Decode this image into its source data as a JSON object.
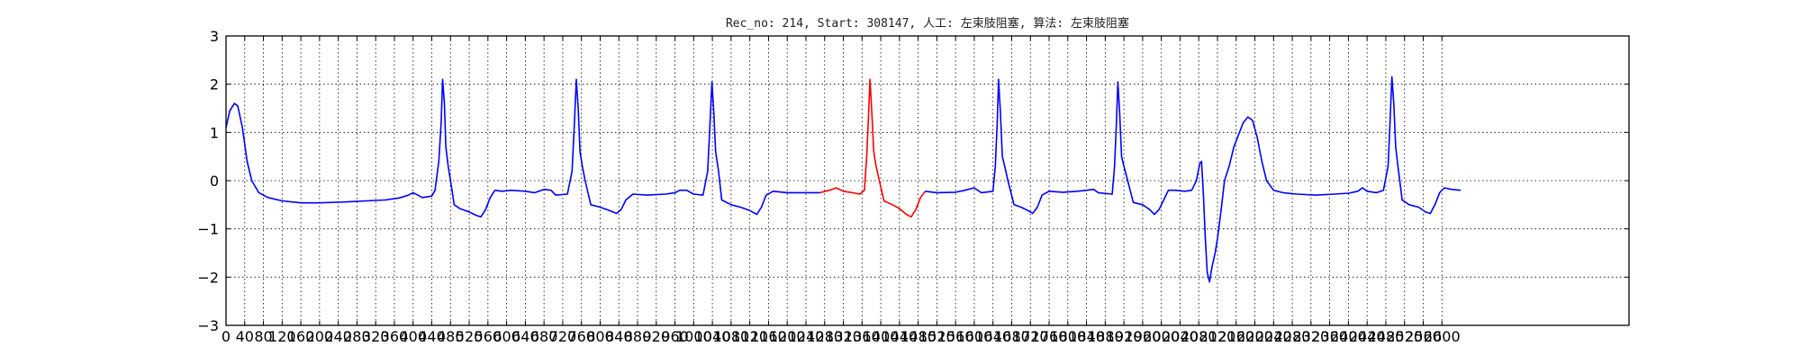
{
  "chart_data": {
    "type": "line",
    "title": "Rec_no: 214, Start: 308147, 人工: 左束肢阻塞, 算法: 左束肢阻塞",
    "xlabel": "",
    "ylabel": "",
    "xlim": [
      0,
      3000
    ],
    "ylim": [
      -3,
      3
    ],
    "grid": true,
    "x_ticks": [
      0,
      40,
      80,
      120,
      160,
      200,
      240,
      280,
      320,
      360,
      400,
      440,
      480,
      520,
      560,
      600,
      640,
      680,
      720,
      760,
      800,
      840,
      880,
      920,
      960,
      1000,
      1040,
      1080,
      1120,
      1160,
      1200,
      1240,
      1280,
      1320,
      1360,
      1400,
      1440,
      1480,
      1520,
      1560,
      1600,
      1640,
      1680,
      1720,
      1760,
      1800,
      1840,
      1880,
      1920,
      1960,
      2000,
      2040,
      2080,
      2120,
      2160,
      2200,
      2240,
      2280,
      2320,
      2360,
      2400,
      2440,
      2480,
      2520,
      2560,
      2600
    ],
    "y_ticks": [
      3,
      2,
      1,
      0,
      -1,
      -2,
      -3
    ],
    "y_tick_labels": [
      "3",
      "2",
      "1",
      "0",
      "−1",
      "−2",
      "−3"
    ],
    "series": [
      {
        "color": "#0000ff",
        "points": [
          [
            0,
            1.1
          ],
          [
            8,
            1.45
          ],
          [
            18,
            1.6
          ],
          [
            25,
            1.55
          ],
          [
            35,
            1.1
          ],
          [
            45,
            0.4
          ],
          [
            55,
            0.0
          ],
          [
            70,
            -0.25
          ],
          [
            90,
            -0.35
          ],
          [
            120,
            -0.42
          ],
          [
            160,
            -0.46
          ],
          [
            200,
            -0.46
          ],
          [
            260,
            -0.44
          ],
          [
            300,
            -0.42
          ],
          [
            340,
            -0.4
          ],
          [
            370,
            -0.36
          ],
          [
            390,
            -0.3
          ],
          [
            400,
            -0.25
          ],
          [
            410,
            -0.3
          ],
          [
            420,
            -0.35
          ],
          [
            440,
            -0.32
          ],
          [
            447,
            -0.2
          ],
          [
            455,
            0.4
          ],
          [
            460,
            1.2
          ],
          [
            463,
            2.1
          ],
          [
            467,
            1.6
          ],
          [
            470,
            0.7
          ],
          [
            475,
            0.3
          ],
          [
            480,
            0.0
          ],
          [
            488,
            -0.5
          ],
          [
            500,
            -0.58
          ],
          [
            520,
            -0.65
          ],
          [
            535,
            -0.72
          ],
          [
            545,
            -0.75
          ],
          [
            555,
            -0.6
          ],
          [
            565,
            -0.35
          ],
          [
            575,
            -0.2
          ],
          [
            590,
            -0.22
          ],
          [
            610,
            -0.2
          ],
          [
            640,
            -0.22
          ],
          [
            660,
            -0.25
          ],
          [
            680,
            -0.18
          ],
          [
            695,
            -0.2
          ],
          [
            705,
            -0.3
          ],
          [
            730,
            -0.28
          ],
          [
            740,
            0.2
          ],
          [
            745,
            1.2
          ],
          [
            749,
            2.1
          ],
          [
            753,
            1.5
          ],
          [
            757,
            0.6
          ],
          [
            762,
            0.3
          ],
          [
            768,
            0.0
          ],
          [
            780,
            -0.5
          ],
          [
            800,
            -0.55
          ],
          [
            820,
            -0.62
          ],
          [
            835,
            -0.68
          ],
          [
            845,
            -0.6
          ],
          [
            855,
            -0.4
          ],
          [
            870,
            -0.28
          ],
          [
            900,
            -0.3
          ],
          [
            940,
            -0.28
          ],
          [
            960,
            -0.25
          ],
          [
            970,
            -0.2
          ],
          [
            985,
            -0.2
          ],
          [
            1000,
            -0.28
          ],
          [
            1020,
            -0.3
          ],
          [
            1030,
            0.2
          ],
          [
            1035,
            1.2
          ],
          [
            1039,
            2.05
          ],
          [
            1043,
            1.4
          ],
          [
            1047,
            0.6
          ],
          [
            1053,
            0.2
          ],
          [
            1060,
            -0.4
          ],
          [
            1080,
            -0.5
          ],
          [
            1100,
            -0.55
          ],
          [
            1120,
            -0.62
          ],
          [
            1135,
            -0.7
          ],
          [
            1145,
            -0.55
          ],
          [
            1155,
            -0.3
          ],
          [
            1170,
            -0.22
          ],
          [
            1200,
            -0.25
          ],
          [
            1230,
            -0.25
          ],
          [
            1260,
            -0.25
          ],
          [
            1270,
            -0.25
          ]
        ]
      },
      {
        "color": "#ff0000",
        "points": [
          [
            1270,
            -0.25
          ],
          [
            1290,
            -0.2
          ],
          [
            1305,
            -0.15
          ],
          [
            1320,
            -0.22
          ],
          [
            1340,
            -0.25
          ],
          [
            1355,
            -0.28
          ],
          [
            1365,
            -0.2
          ],
          [
            1370,
            0.5
          ],
          [
            1374,
            1.4
          ],
          [
            1377,
            2.1
          ],
          [
            1381,
            1.4
          ],
          [
            1385,
            0.6
          ],
          [
            1390,
            0.3
          ],
          [
            1397,
            0.0
          ],
          [
            1407,
            -0.42
          ],
          [
            1425,
            -0.5
          ],
          [
            1440,
            -0.58
          ],
          [
            1455,
            -0.7
          ],
          [
            1465,
            -0.75
          ],
          [
            1475,
            -0.6
          ],
          [
            1485,
            -0.35
          ],
          [
            1495,
            -0.22
          ]
        ]
      },
      {
        "color": "#0000ff",
        "points": [
          [
            1495,
            -0.22
          ],
          [
            1520,
            -0.25
          ],
          [
            1560,
            -0.24
          ],
          [
            1580,
            -0.2
          ],
          [
            1600,
            -0.15
          ],
          [
            1615,
            -0.25
          ],
          [
            1640,
            -0.22
          ],
          [
            1645,
            0.3
          ],
          [
            1649,
            1.2
          ],
          [
            1652,
            2.1
          ],
          [
            1656,
            1.4
          ],
          [
            1660,
            0.5
          ],
          [
            1665,
            0.3
          ],
          [
            1672,
            0.0
          ],
          [
            1685,
            -0.5
          ],
          [
            1700,
            -0.55
          ],
          [
            1715,
            -0.62
          ],
          [
            1725,
            -0.68
          ],
          [
            1735,
            -0.55
          ],
          [
            1745,
            -0.3
          ],
          [
            1760,
            -0.22
          ],
          [
            1790,
            -0.24
          ],
          [
            1820,
            -0.22
          ],
          [
            1840,
            -0.2
          ],
          [
            1855,
            -0.18
          ],
          [
            1865,
            -0.25
          ],
          [
            1895,
            -0.28
          ],
          [
            1900,
            0.3
          ],
          [
            1904,
            1.2
          ],
          [
            1907,
            2.05
          ],
          [
            1911,
            1.4
          ],
          [
            1915,
            0.5
          ],
          [
            1920,
            0.3
          ],
          [
            1928,
            0.0
          ],
          [
            1940,
            -0.45
          ],
          [
            1960,
            -0.5
          ],
          [
            1975,
            -0.6
          ],
          [
            1985,
            -0.7
          ],
          [
            1995,
            -0.6
          ],
          [
            2005,
            -0.4
          ],
          [
            2015,
            -0.2
          ],
          [
            2030,
            -0.2
          ],
          [
            2050,
            -0.22
          ],
          [
            2065,
            -0.2
          ],
          [
            2075,
            0.0
          ],
          [
            2082,
            0.35
          ],
          [
            2086,
            0.4
          ],
          [
            2090,
            -0.3
          ],
          [
            2094,
            -1.2
          ],
          [
            2098,
            -1.9
          ],
          [
            2103,
            -2.1
          ],
          [
            2108,
            -1.8
          ],
          [
            2115,
            -1.5
          ],
          [
            2120,
            -1.2
          ],
          [
            2128,
            -0.6
          ],
          [
            2135,
            0.0
          ],
          [
            2145,
            0.3
          ],
          [
            2155,
            0.7
          ],
          [
            2165,
            0.95
          ],
          [
            2175,
            1.2
          ],
          [
            2185,
            1.32
          ],
          [
            2195,
            1.25
          ],
          [
            2205,
            0.9
          ],
          [
            2215,
            0.4
          ],
          [
            2225,
            0.0
          ],
          [
            2240,
            -0.2
          ],
          [
            2260,
            -0.25
          ],
          [
            2290,
            -0.28
          ],
          [
            2330,
            -0.3
          ],
          [
            2370,
            -0.28
          ],
          [
            2400,
            -0.26
          ],
          [
            2420,
            -0.22
          ],
          [
            2430,
            -0.15
          ],
          [
            2440,
            -0.22
          ],
          [
            2460,
            -0.25
          ],
          [
            2475,
            -0.2
          ],
          [
            2485,
            0.3
          ],
          [
            2489,
            1.2
          ],
          [
            2493,
            2.15
          ],
          [
            2497,
            1.6
          ],
          [
            2501,
            0.7
          ],
          [
            2506,
            0.3
          ],
          [
            2515,
            -0.4
          ],
          [
            2530,
            -0.5
          ],
          [
            2550,
            -0.55
          ],
          [
            2565,
            -0.65
          ],
          [
            2575,
            -0.68
          ],
          [
            2585,
            -0.5
          ],
          [
            2595,
            -0.25
          ],
          [
            2605,
            -0.15
          ],
          [
            2620,
            -0.18
          ],
          [
            2640,
            -0.2
          ]
        ]
      }
    ]
  }
}
